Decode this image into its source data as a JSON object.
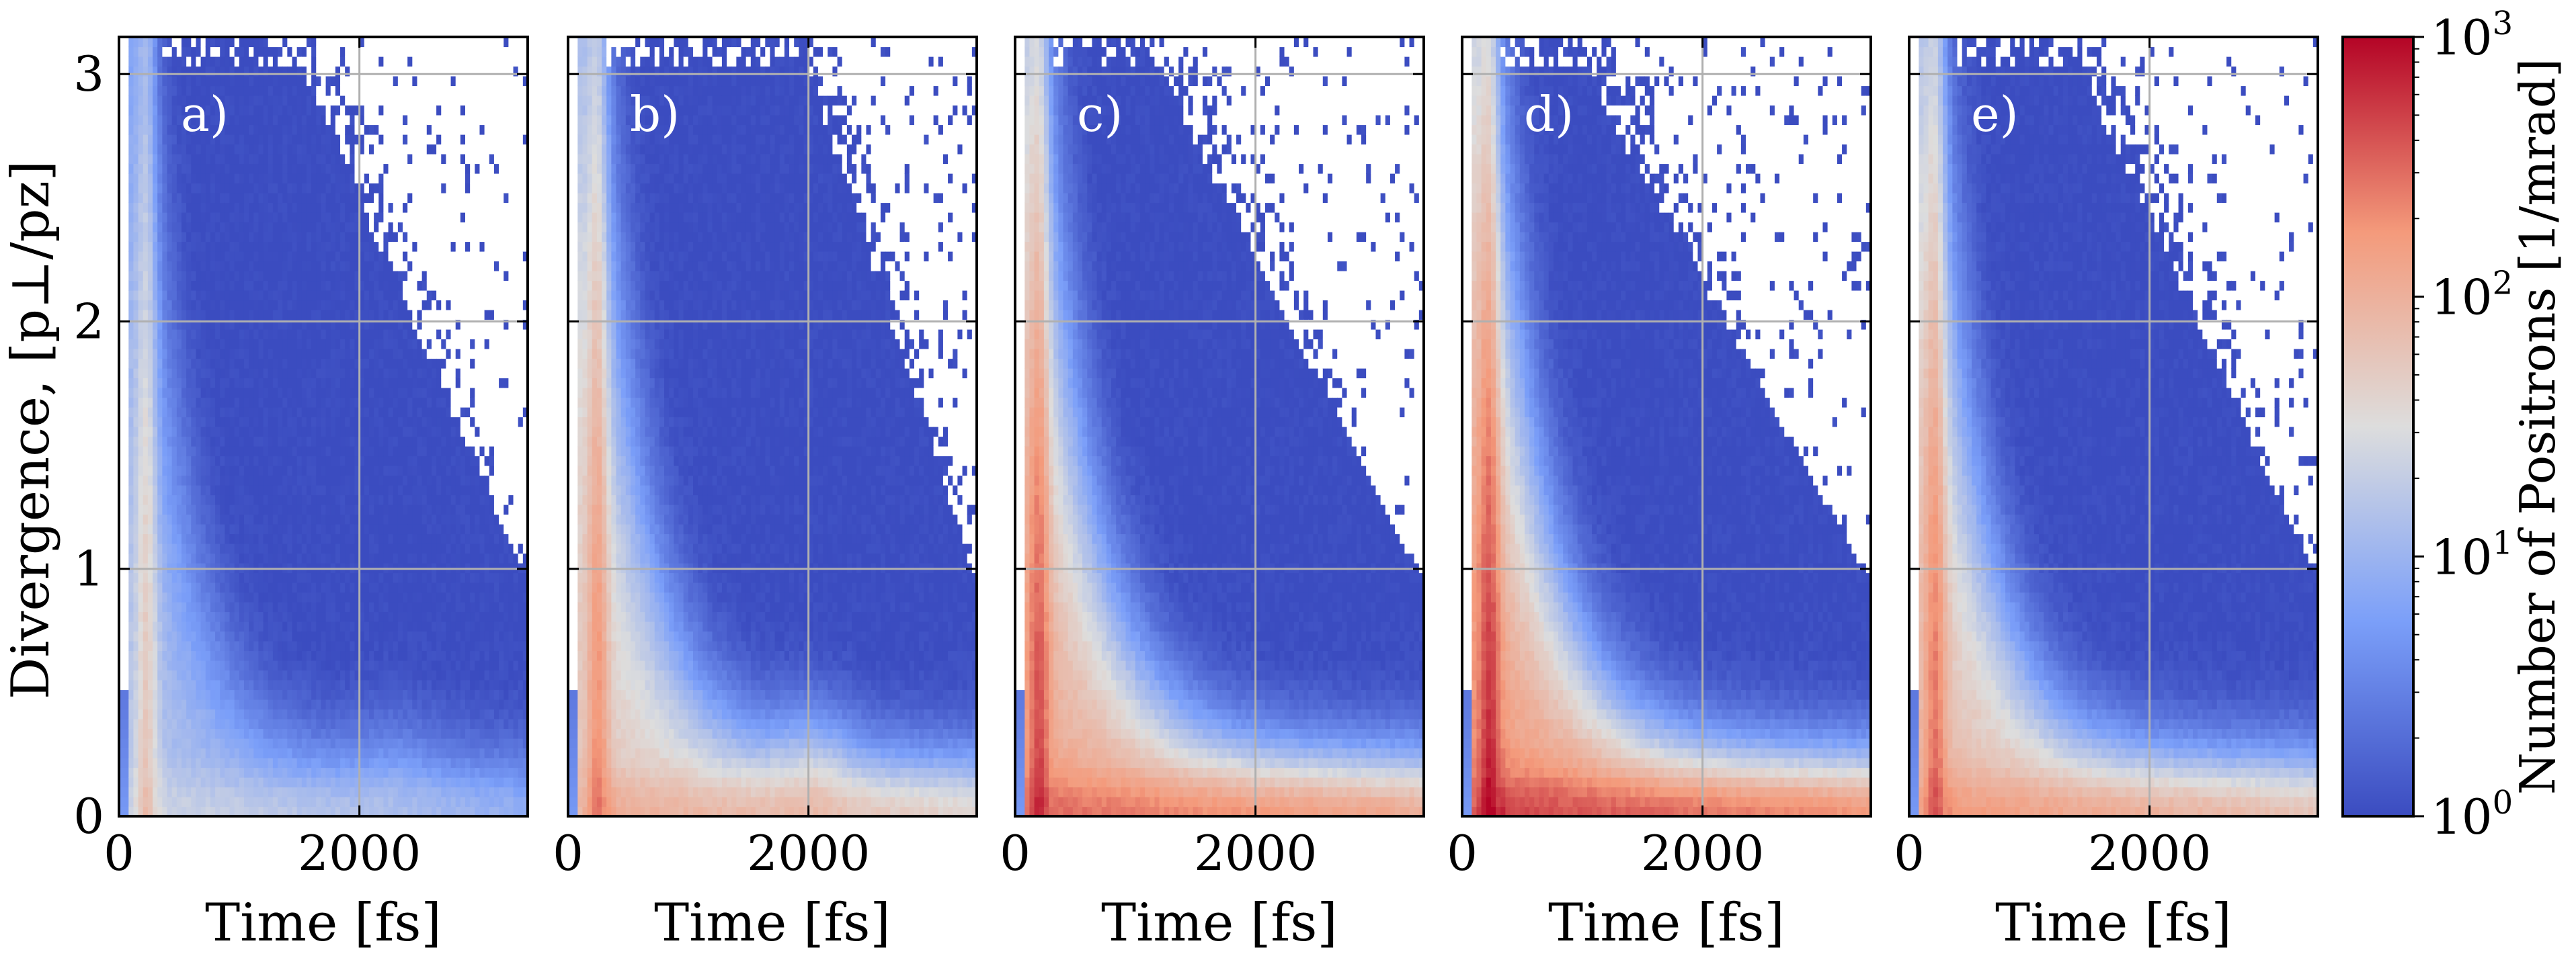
{
  "figure": {
    "ylabel": "Divergence, [p⊥/pz]",
    "colorbar_label": "Number of Positrons [1/mrad]"
  },
  "colors": {
    "low": "#3b4cc0",
    "mid": "#dddddd",
    "high": "#b40426",
    "grid": "#b0b0b0",
    "axis": "#000000",
    "empty": "#ffffff"
  },
  "chart_data": [
    {
      "type": "heatmap",
      "panel_label": "a)",
      "xlabel": "Time [fs]",
      "xlim": [
        0,
        3400
      ],
      "ylim": [
        0,
        3.15
      ],
      "xticks": [
        0,
        2000
      ],
      "xtick_labels": [
        "0",
        "2000"
      ],
      "yticks": [
        0,
        1,
        2,
        3
      ],
      "ytick_labels": [
        "0",
        "1",
        "2",
        "3"
      ],
      "empty_start_time": 1400,
      "spike_time": 230,
      "decay_fs": 330,
      "core_peak_log10": 1.15,
      "tail_level_log10": 0.75,
      "tail_gain_log10": 0.25,
      "bump_time": 2300,
      "bump_height_log10": 0.15,
      "grid": true,
      "show_yticklabels": true
    },
    {
      "type": "heatmap",
      "panel_label": "b)",
      "xlabel": "Time [fs]",
      "xlim": [
        0,
        3400
      ],
      "ylim": [
        0,
        3.15
      ],
      "xticks": [
        0,
        2000
      ],
      "xtick_labels": [
        "0",
        "2000"
      ],
      "yticks": [
        0,
        1,
        2,
        3
      ],
      "ytick_labels": [
        "",
        "",
        "",
        ""
      ],
      "empty_start_time": 1900,
      "spike_time": 250,
      "decay_fs": 380,
      "core_peak_log10": 1.7,
      "tail_level_log10": 1.2,
      "tail_gain_log10": 0.35,
      "bump_time": 2050,
      "bump_height_log10": 0.35,
      "grid": true,
      "show_yticklabels": false
    },
    {
      "type": "heatmap",
      "panel_label": "c)",
      "xlabel": "Time [fs]",
      "xlim": [
        0,
        3400
      ],
      "ylim": [
        0,
        3.15
      ],
      "xticks": [
        0,
        2000
      ],
      "xtick_labels": [
        "0",
        "2000"
      ],
      "yticks": [
        0,
        1,
        2,
        3
      ],
      "ytick_labels": [
        "",
        "",
        "",
        ""
      ],
      "empty_start_time": 1050,
      "spike_time": 200,
      "decay_fs": 420,
      "core_peak_log10": 2.05,
      "tail_level_log10": 1.45,
      "tail_gain_log10": 0.45,
      "bump_time": 2400,
      "bump_height_log10": 0.0,
      "grid": true,
      "show_yticklabels": false
    },
    {
      "type": "heatmap",
      "panel_label": "d)",
      "xlabel": "Time [fs]",
      "xlim": [
        0,
        3400
      ],
      "ylim": [
        0,
        3.15
      ],
      "xticks": [
        0,
        2000
      ],
      "xtick_labels": [
        "0",
        "2000"
      ],
      "yticks": [
        0,
        1,
        2,
        3
      ],
      "ytick_labels": [
        "",
        "",
        "",
        ""
      ],
      "empty_start_time": 850,
      "spike_time": 230,
      "decay_fs": 420,
      "core_peak_log10": 2.2,
      "tail_level_log10": 1.55,
      "tail_gain_log10": 0.5,
      "bump_time": 2400,
      "bump_height_log10": 0.0,
      "grid": true,
      "show_yticklabels": false
    },
    {
      "type": "heatmap",
      "panel_label": "e)",
      "xlabel": "Time [fs]",
      "xlim": [
        0,
        3400
      ],
      "ylim": [
        0,
        3.15
      ],
      "xticks": [
        0,
        2000
      ],
      "xtick_labels": [
        "0",
        "2000"
      ],
      "yticks": [
        0,
        1,
        2,
        3
      ],
      "ytick_labels": [
        "",
        "",
        "",
        ""
      ],
      "empty_start_time": 1300,
      "spike_time": 220,
      "decay_fs": 380,
      "core_peak_log10": 1.85,
      "tail_level_log10": 1.4,
      "tail_gain_log10": 0.4,
      "bump_time": 2400,
      "bump_height_log10": 0.0,
      "grid": true,
      "show_yticklabels": false
    }
  ],
  "colorbar": {
    "scale": "log",
    "range": [
      1,
      1000
    ],
    "ticks": [
      {
        "log10": 0,
        "base": "10",
        "exp": "0"
      },
      {
        "log10": 1,
        "base": "10",
        "exp": "1"
      },
      {
        "log10": 2,
        "base": "10",
        "exp": "2"
      },
      {
        "log10": 3,
        "base": "10",
        "exp": "3"
      }
    ]
  }
}
